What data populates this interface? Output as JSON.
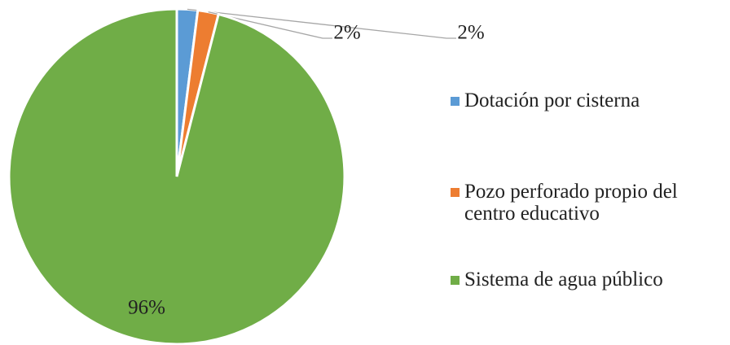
{
  "chart_data": {
    "type": "pie",
    "categories": [
      "Dotación por cisterna",
      "Pozo perforado propio del centro educativo",
      "Sistema de agua público"
    ],
    "values": [
      2,
      2,
      96
    ],
    "value_labels": [
      "2%",
      "2%",
      "96%"
    ],
    "colors": [
      "#5b9bd5",
      "#ed7d31",
      "#70ad47"
    ],
    "legend": "right"
  }
}
